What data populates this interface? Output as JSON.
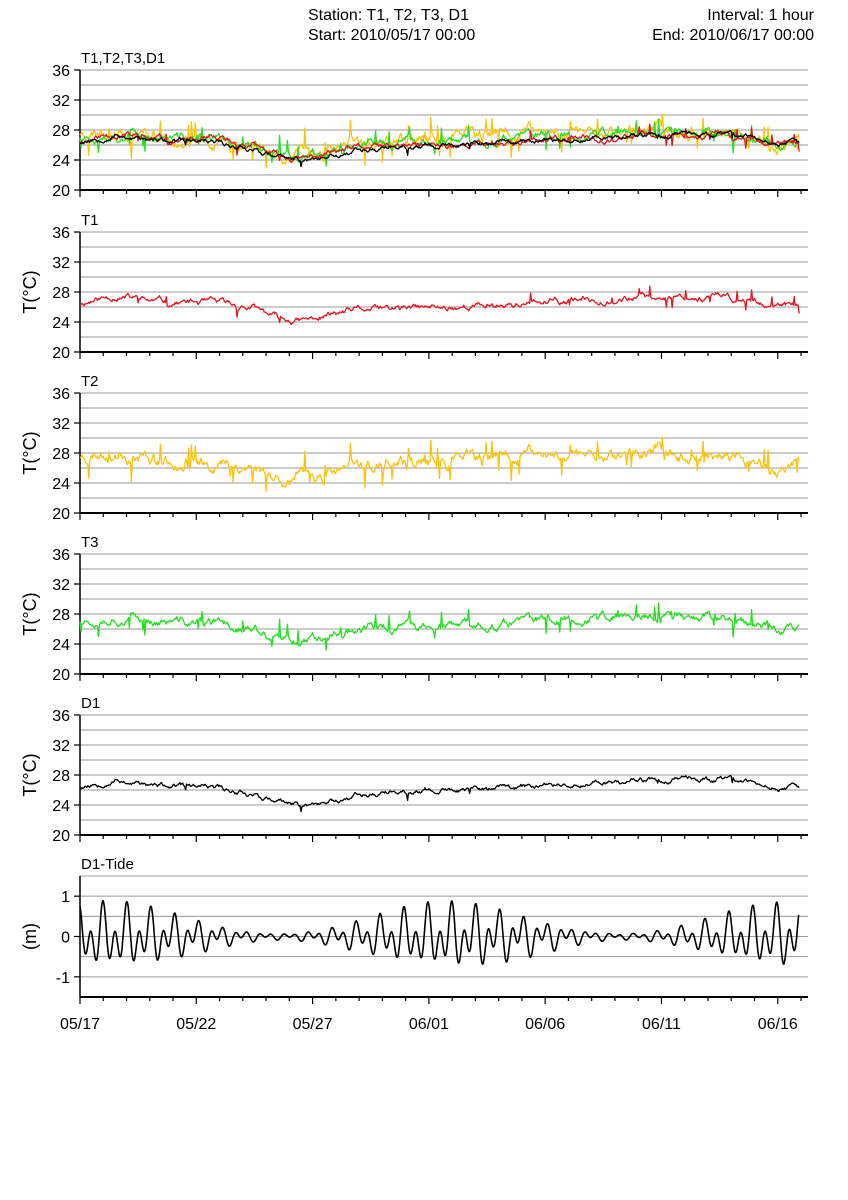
{
  "header": {
    "station": "Station: T1, T2, T3, D1",
    "start": "Start: 2010/05/17 00:00",
    "interval": "Interval: 1 hour",
    "end": "End: 2010/06/17 00:00"
  },
  "colors": {
    "T1": "#e8141e",
    "T2": "#ffc107",
    "T3": "#22e01e",
    "D1": "#000000",
    "tide": "#000000"
  },
  "chart_data": [
    {
      "type": "line",
      "title": "T1,T2,T3,D1",
      "ylabel": "",
      "ylim": [
        20,
        36
      ],
      "yticks": [
        20,
        24,
        28,
        32,
        36
      ],
      "grid": true,
      "series": [
        {
          "key": "T1",
          "values": []
        },
        {
          "key": "T2",
          "values": []
        },
        {
          "key": "T3",
          "values": []
        },
        {
          "key": "D1",
          "values": []
        }
      ]
    },
    {
      "type": "line",
      "title": "T1",
      "ylabel": "T(°C)",
      "ylim": [
        20,
        36
      ],
      "yticks": [
        20,
        24,
        28,
        32,
        36
      ],
      "grid": true,
      "series_key": "T1",
      "trend_day_value": [
        [
          0,
          26.5
        ],
        [
          1.5,
          27.5
        ],
        [
          3,
          26.8
        ],
        [
          6,
          26.5
        ],
        [
          7.5,
          25.8
        ],
        [
          8.5,
          24.5
        ],
        [
          9.5,
          24.0
        ],
        [
          10.5,
          24.8
        ],
        [
          12,
          25.6
        ],
        [
          16,
          26.0
        ],
        [
          20,
          26.6
        ],
        [
          24,
          27.3
        ],
        [
          27,
          27.4
        ],
        [
          29,
          26.9
        ],
        [
          30,
          26.2
        ]
      ]
    },
    {
      "type": "line",
      "title": "T2",
      "ylabel": "T(°C)",
      "ylim": [
        20,
        36
      ],
      "yticks": [
        20,
        24,
        28,
        32,
        36
      ],
      "grid": true,
      "series_key": "T2",
      "trend_day_value": [
        [
          0,
          27.6
        ],
        [
          1.5,
          28.3
        ],
        [
          3,
          27.4
        ],
        [
          6,
          26.6
        ],
        [
          7.5,
          26.0
        ],
        [
          8.5,
          24.7
        ],
        [
          9.5,
          24.6
        ],
        [
          10.5,
          25.0
        ],
        [
          12,
          26.3
        ],
        [
          16,
          26.8
        ],
        [
          20,
          27.8
        ],
        [
          24,
          28.0
        ],
        [
          27,
          27.8
        ],
        [
          29,
          27.0
        ],
        [
          30,
          25.8
        ]
      ]
    },
    {
      "type": "line",
      "title": "T3",
      "ylabel": "T(°C)",
      "ylim": [
        20,
        36
      ],
      "yticks": [
        20,
        24,
        28,
        32,
        36
      ],
      "grid": true,
      "series_key": "T3",
      "trend_day_value": [
        [
          0,
          27.2
        ],
        [
          1.5,
          27.6
        ],
        [
          3,
          27.0
        ],
        [
          6,
          26.6
        ],
        [
          7.5,
          25.9
        ],
        [
          8.5,
          24.3
        ],
        [
          9.5,
          24.6
        ],
        [
          10.5,
          25.3
        ],
        [
          12,
          26.3
        ],
        [
          16,
          26.2
        ],
        [
          20,
          27.2
        ],
        [
          24,
          27.6
        ],
        [
          27,
          27.8
        ],
        [
          29,
          27.1
        ],
        [
          30,
          26.0
        ]
      ]
    },
    {
      "type": "line",
      "title": "D1",
      "ylabel": "T(°C)",
      "ylim": [
        20,
        36
      ],
      "yticks": [
        20,
        24,
        28,
        32,
        36
      ],
      "grid": true,
      "series_key": "D1",
      "trend_day_value": [
        [
          0,
          26.4
        ],
        [
          1.5,
          27.4
        ],
        [
          3,
          26.6
        ],
        [
          6,
          26.2
        ],
        [
          7.5,
          25.5
        ],
        [
          8.5,
          24.3
        ],
        [
          9.5,
          23.9
        ],
        [
          10.5,
          24.3
        ],
        [
          12,
          25.5
        ],
        [
          16,
          25.9
        ],
        [
          20,
          26.7
        ],
        [
          24,
          27.3
        ],
        [
          27,
          27.5
        ],
        [
          29,
          26.9
        ],
        [
          30,
          26.2
        ]
      ]
    },
    {
      "type": "line",
      "title": "D1-Tide",
      "ylabel": "(m)",
      "ylim": [
        -1.5,
        1.5
      ],
      "yticks": [
        -1,
        0,
        1
      ],
      "grid": true,
      "series_key": "tide",
      "amplitude_m": 0.85
    }
  ],
  "xaxis": {
    "ticks": [
      "05/17",
      "05/22",
      "05/27",
      "06/01",
      "06/06",
      "06/11",
      "06/16"
    ],
    "tick_day_positions": [
      0,
      5,
      10,
      15,
      20,
      25,
      30
    ],
    "days_span": 31.3
  }
}
